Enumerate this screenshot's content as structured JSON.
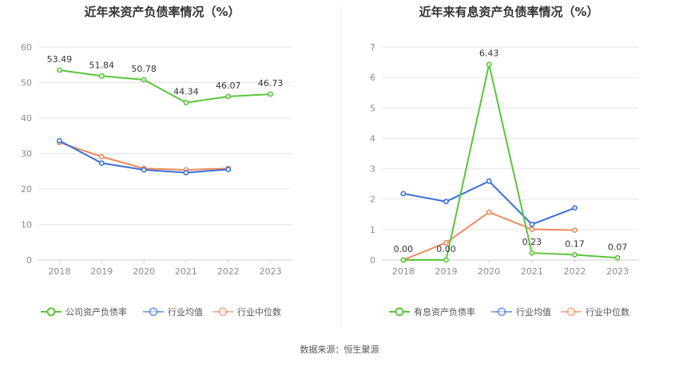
{
  "source": "数据来源：恒生聚源",
  "chart_data": [
    {
      "type": "line",
      "title": "近年来资产负债率情况（%）",
      "categories": [
        "2018",
        "2019",
        "2020",
        "2021",
        "2022",
        "2023"
      ],
      "ylim": [
        0,
        60
      ],
      "yticks": [
        0,
        10,
        20,
        30,
        40,
        50,
        60
      ],
      "grid": true,
      "legend_position": "bottom",
      "series": [
        {
          "name": "公司资产负债率",
          "color": "#5ac53a",
          "values": [
            53.49,
            51.84,
            50.78,
            44.34,
            46.07,
            46.73
          ],
          "labels": [
            "53.49",
            "51.84",
            "50.78",
            "44.34",
            "46.07",
            "46.73"
          ]
        },
        {
          "name": "行业均值",
          "color": "#3a6fd6",
          "values": [
            33.6,
            27.3,
            25.4,
            24.6,
            25.5,
            null
          ]
        },
        {
          "name": "行业中位数",
          "color": "#f0885e",
          "values": [
            33.1,
            29.1,
            25.8,
            25.4,
            25.8,
            null
          ]
        }
      ]
    },
    {
      "type": "line",
      "title": "近年来有息资产负债率情况（%）",
      "categories": [
        "2018",
        "2019",
        "2020",
        "2021",
        "2022",
        "2023"
      ],
      "ylim": [
        0,
        7
      ],
      "yticks": [
        0,
        1,
        2,
        3,
        4,
        5,
        6,
        7
      ],
      "grid": true,
      "legend_position": "bottom",
      "series": [
        {
          "name": "有息资产负债率",
          "color": "#5ac53a",
          "values": [
            0.0,
            0.0,
            6.43,
            0.23,
            0.17,
            0.07
          ],
          "labels": [
            "0.00",
            "0.00",
            "6.43",
            "0.23",
            "0.17",
            "0.07"
          ]
        },
        {
          "name": "行业均值",
          "color": "#3a6fd6",
          "values": [
            2.18,
            1.92,
            2.59,
            1.17,
            1.71,
            null
          ]
        },
        {
          "name": "行业中位数",
          "color": "#f0885e",
          "values": [
            0.0,
            0.57,
            1.57,
            1.01,
            0.98,
            null
          ]
        }
      ]
    }
  ]
}
